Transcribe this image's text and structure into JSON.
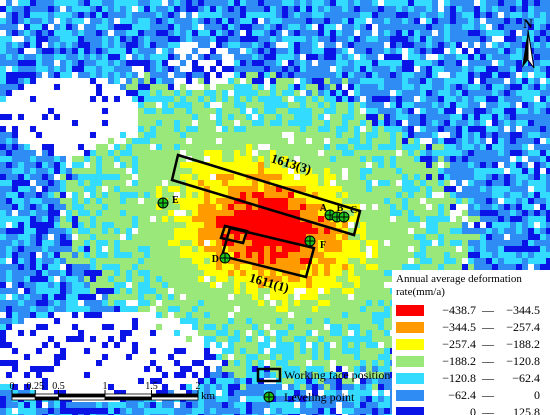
{
  "map": {
    "north_label": "N",
    "working_faces": [
      {
        "label": "1613(3)"
      },
      {
        "label": "1611(1)"
      }
    ],
    "points": [
      {
        "label": "A"
      },
      {
        "label": "B"
      },
      {
        "label": "C"
      },
      {
        "label": "D"
      },
      {
        "label": "E"
      },
      {
        "label": "F"
      }
    ],
    "scale_bar": {
      "ticks": [
        0,
        0.25,
        0.5,
        1,
        1.5,
        2
      ],
      "unit": "km"
    },
    "symbol_legend": [
      "Working face position",
      "Leveling point"
    ],
    "legend": {
      "title": "Annual average deformation rate(mm/a)",
      "separator": "—",
      "classes": [
        {
          "from": "−438.7",
          "to": "−344.5",
          "color": "#ff0000"
        },
        {
          "from": "−344.5",
          "to": "−257.4",
          "color": "#ff9a00"
        },
        {
          "from": "−257.4",
          "to": "−188.2",
          "color": "#ffff00"
        },
        {
          "from": "−188.2",
          "to": "−120.8",
          "color": "#9be87a"
        },
        {
          "from": "−120.8",
          "to": "−62.4",
          "color": "#33dcff"
        },
        {
          "from": "−62.4",
          "to": "0",
          "color": "#2f8cf5"
        },
        {
          "from": "0",
          "to": "125.8",
          "color": "#0a14e6"
        }
      ]
    }
  }
}
